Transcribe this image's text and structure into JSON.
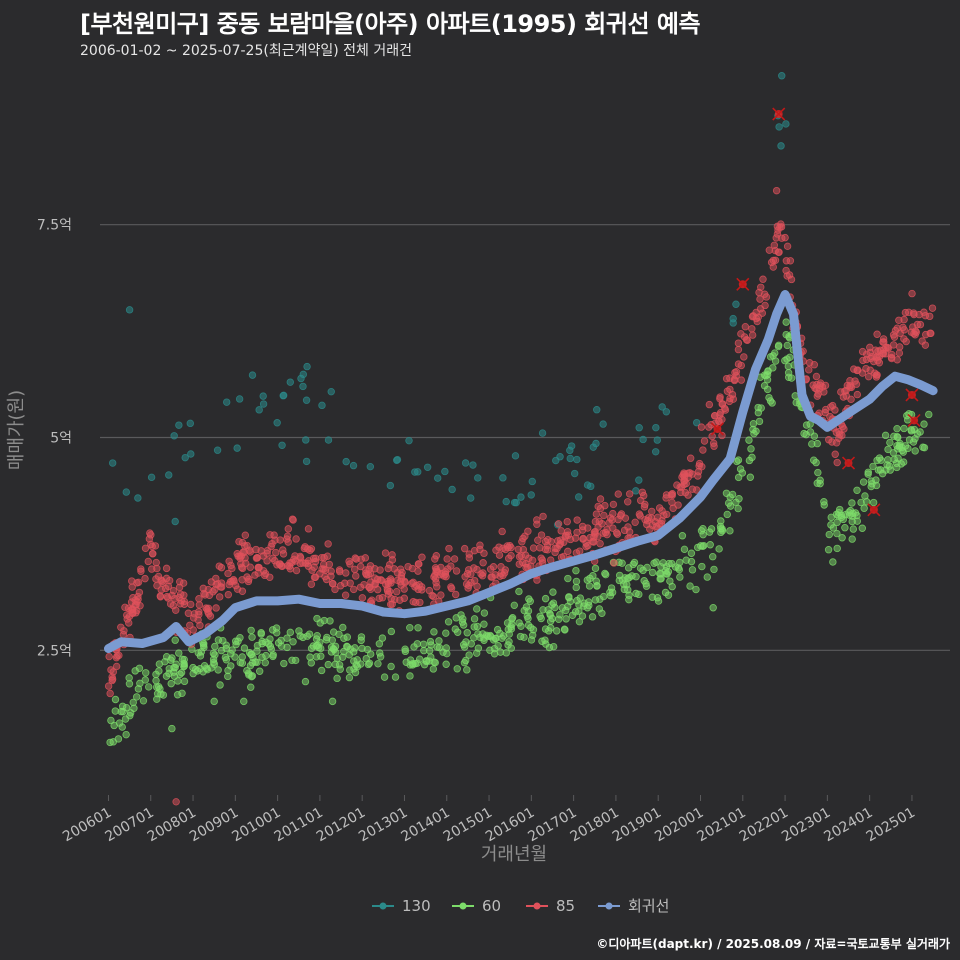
{
  "header": {
    "title": "[부천원미구] 중동 보람마을(아주) 아파트(1995) 회귀선 예측",
    "subtitle": "2006-01-02 ~ 2025-07-25(최근계약일) 전체 거래건"
  },
  "footer": {
    "credit": "©디아파트(dapt.kr) / 2025.08.09 / 자료=국토교통부 실거래가"
  },
  "chart_data": {
    "type": "scatter",
    "xlabel": "거래년월",
    "ylabel": "매매가(원)",
    "x_tick_labels": [
      "200601",
      "200701",
      "200801",
      "200901",
      "201001",
      "201101",
      "201201",
      "201301",
      "201401",
      "201501",
      "201601",
      "201701",
      "201801",
      "201901",
      "202001",
      "202101",
      "202201",
      "202301",
      "202401",
      "202501"
    ],
    "y_ticks": [
      2.5,
      5,
      7.5
    ],
    "y_tick_labels": [
      "2.5억",
      "5억",
      "7.5억"
    ],
    "ylim": [
      0.8,
      9.2
    ],
    "xlim": [
      2005.8,
      2025.9
    ],
    "grid": "horizontal",
    "legend_position": "bottom",
    "colors": {
      "130": "#2b8a8a",
      "60": "#7ddc6a",
      "85": "#e0515b",
      "regression": "#7b9bd1",
      "cancelled": "#ff2020"
    },
    "series": [
      {
        "name": "130",
        "trend": [
          [
            2006.0,
            3.85
          ],
          [
            2006.5,
            4.05
          ],
          [
            2007.5,
            4.6
          ],
          [
            2008.5,
            5.0
          ],
          [
            2009.5,
            5.2
          ],
          [
            2010.5,
            5.35
          ],
          [
            2011.5,
            5.0
          ],
          [
            2012.5,
            4.9
          ],
          [
            2013.5,
            4.55
          ],
          [
            2014.5,
            4.45
          ],
          [
            2015.5,
            4.4
          ],
          [
            2016.5,
            4.5
          ],
          [
            2017.5,
            4.7
          ],
          [
            2018.5,
            4.95
          ],
          [
            2019.5,
            5.3
          ],
          [
            2020.0,
            5.6
          ],
          [
            2020.5,
            6.2
          ],
          [
            2021.0,
            6.8
          ],
          [
            2021.5,
            7.6
          ],
          [
            2021.9,
            8.8
          ],
          [
            2022.3,
            8.5
          ]
        ],
        "extra": [
          [
            2006.5,
            6.5
          ],
          [
            2006.1,
            4.7
          ],
          [
            2010.3,
            5.65
          ],
          [
            2010.6,
            5.6
          ]
        ]
      },
      {
        "name": "60",
        "trend": [
          [
            2006.0,
            1.55
          ],
          [
            2006.3,
            1.75
          ],
          [
            2006.7,
            2.05
          ],
          [
            2007.3,
            2.2
          ],
          [
            2008.0,
            2.35
          ],
          [
            2008.7,
            2.45
          ],
          [
            2009.3,
            2.4
          ],
          [
            2010.0,
            2.55
          ],
          [
            2011.0,
            2.5
          ],
          [
            2012.0,
            2.45
          ],
          [
            2013.0,
            2.4
          ],
          [
            2014.0,
            2.55
          ],
          [
            2015.0,
            2.7
          ],
          [
            2016.0,
            2.85
          ],
          [
            2017.0,
            3.05
          ],
          [
            2018.0,
            3.25
          ],
          [
            2019.0,
            3.4
          ],
          [
            2019.5,
            3.5
          ],
          [
            2020.0,
            3.6
          ],
          [
            2020.5,
            3.9
          ],
          [
            2021.0,
            4.6
          ],
          [
            2021.5,
            5.5
          ],
          [
            2022.0,
            6.1
          ],
          [
            2022.4,
            5.4
          ],
          [
            2022.8,
            4.6
          ],
          [
            2023.0,
            3.8
          ],
          [
            2023.5,
            4.1
          ],
          [
            2024.0,
            4.4
          ],
          [
            2024.5,
            4.8
          ],
          [
            2025.0,
            5.0
          ],
          [
            2025.5,
            5.05
          ]
        ],
        "extra": [
          [
            2007.5,
            1.58
          ],
          [
            2008.5,
            1.9
          ],
          [
            2009.2,
            1.9
          ],
          [
            2011.3,
            1.9
          ],
          [
            2020.3,
            3.0
          ]
        ]
      },
      {
        "name": "85",
        "trend": [
          [
            2006.0,
            2.2
          ],
          [
            2006.3,
            2.7
          ],
          [
            2006.7,
            3.2
          ],
          [
            2007.0,
            3.7
          ],
          [
            2007.3,
            3.2
          ],
          [
            2008.0,
            2.9
          ],
          [
            2008.5,
            3.2
          ],
          [
            2009.0,
            3.4
          ],
          [
            2009.5,
            3.6
          ],
          [
            2010.0,
            3.65
          ],
          [
            2010.5,
            3.7
          ],
          [
            2011.0,
            3.45
          ],
          [
            2011.5,
            3.4
          ],
          [
            2012.0,
            3.35
          ],
          [
            2012.5,
            3.3
          ],
          [
            2013.0,
            3.2
          ],
          [
            2013.5,
            3.3
          ],
          [
            2014.0,
            3.35
          ],
          [
            2014.5,
            3.4
          ],
          [
            2015.0,
            3.45
          ],
          [
            2015.5,
            3.55
          ],
          [
            2016.0,
            3.6
          ],
          [
            2016.5,
            3.7
          ],
          [
            2017.0,
            3.8
          ],
          [
            2017.5,
            3.9
          ],
          [
            2018.0,
            3.95
          ],
          [
            2018.5,
            4.0
          ],
          [
            2019.0,
            4.05
          ],
          [
            2019.5,
            4.3
          ],
          [
            2020.0,
            4.8
          ],
          [
            2020.5,
            5.3
          ],
          [
            2021.0,
            6.0
          ],
          [
            2021.5,
            6.8
          ],
          [
            2021.9,
            7.5
          ],
          [
            2022.2,
            6.6
          ],
          [
            2022.5,
            5.9
          ],
          [
            2022.8,
            5.6
          ],
          [
            2023.2,
            5.0
          ],
          [
            2023.6,
            5.6
          ],
          [
            2024.0,
            5.9
          ],
          [
            2024.5,
            6.1
          ],
          [
            2025.0,
            6.3
          ],
          [
            2025.5,
            6.4
          ]
        ],
        "extra": [
          [
            2007.6,
            0.72
          ],
          [
            2021.8,
            7.9
          ]
        ]
      },
      {
        "name": "회귀선",
        "points": [
          [
            2006.0,
            2.52
          ],
          [
            2006.3,
            2.6
          ],
          [
            2006.8,
            2.58
          ],
          [
            2007.3,
            2.65
          ],
          [
            2007.6,
            2.78
          ],
          [
            2007.9,
            2.6
          ],
          [
            2008.3,
            2.7
          ],
          [
            2008.7,
            2.85
          ],
          [
            2009.0,
            3.0
          ],
          [
            2009.5,
            3.08
          ],
          [
            2010.0,
            3.08
          ],
          [
            2010.5,
            3.1
          ],
          [
            2011.0,
            3.05
          ],
          [
            2011.5,
            3.05
          ],
          [
            2012.0,
            3.02
          ],
          [
            2012.5,
            2.95
          ],
          [
            2013.0,
            2.93
          ],
          [
            2013.5,
            2.96
          ],
          [
            2014.0,
            3.02
          ],
          [
            2014.5,
            3.08
          ],
          [
            2015.0,
            3.18
          ],
          [
            2015.5,
            3.28
          ],
          [
            2016.0,
            3.4
          ],
          [
            2016.5,
            3.48
          ],
          [
            2017.0,
            3.55
          ],
          [
            2017.5,
            3.62
          ],
          [
            2018.0,
            3.7
          ],
          [
            2018.5,
            3.78
          ],
          [
            2019.0,
            3.85
          ],
          [
            2019.5,
            4.05
          ],
          [
            2020.0,
            4.3
          ],
          [
            2020.3,
            4.5
          ],
          [
            2020.7,
            4.75
          ],
          [
            2021.0,
            5.3
          ],
          [
            2021.3,
            5.8
          ],
          [
            2021.6,
            6.15
          ],
          [
            2021.8,
            6.45
          ],
          [
            2022.0,
            6.68
          ],
          [
            2022.2,
            6.45
          ],
          [
            2022.4,
            5.5
          ],
          [
            2022.6,
            5.25
          ],
          [
            2022.8,
            5.2
          ],
          [
            2023.0,
            5.12
          ],
          [
            2023.3,
            5.22
          ],
          [
            2023.6,
            5.32
          ],
          [
            2024.0,
            5.45
          ],
          [
            2024.3,
            5.6
          ],
          [
            2024.6,
            5.72
          ],
          [
            2024.9,
            5.68
          ],
          [
            2025.2,
            5.62
          ],
          [
            2025.5,
            5.55
          ]
        ]
      },
      {
        "name": "cancelled",
        "points": [
          [
            2020.4,
            5.1
          ],
          [
            2021.0,
            6.8
          ],
          [
            2021.85,
            8.8
          ],
          [
            2023.5,
            4.7
          ],
          [
            2024.1,
            4.15
          ],
          [
            2025.0,
            5.5
          ],
          [
            2025.05,
            5.2
          ]
        ]
      }
    ],
    "legend": [
      {
        "name": "130",
        "color": "#2b8a8a"
      },
      {
        "name": "60",
        "color": "#7ddc6a"
      },
      {
        "name": "85",
        "color": "#e0515b"
      },
      {
        "name": "회귀선",
        "color": "#7b9bd1"
      }
    ]
  }
}
